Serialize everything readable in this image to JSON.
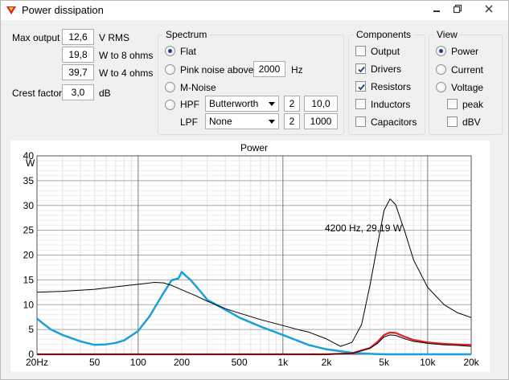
{
  "window": {
    "title": "Power dissipation",
    "controls": [
      "minimize",
      "restore",
      "close"
    ]
  },
  "levels": {
    "max_output_label": "Max output",
    "max_output_value": "12,6",
    "max_output_unit": "V  RMS",
    "w8_value": "19,8",
    "w8_unit": "W to 8 ohms",
    "w4_value": "39,7",
    "w4_unit": "W to 4 ohms",
    "crest_label": "Crest factor",
    "crest_value": "3,0",
    "crest_unit": "dB"
  },
  "spectrum": {
    "title": "Spectrum",
    "flat_label": "Flat",
    "flat_selected": true,
    "pink_label": "Pink noise above",
    "pink_value": "2000",
    "pink_unit": "Hz",
    "mnoise_label": "M-Noise",
    "hpf_label": "HPF",
    "hpf_type": "Butterworth",
    "hpf_order": "2",
    "hpf_freq": "10,0",
    "lpf_label": "LPF",
    "lpf_type": "None",
    "lpf_order": "2",
    "lpf_freq": "1000"
  },
  "components": {
    "title": "Components",
    "items": [
      {
        "label": "Output",
        "checked": false
      },
      {
        "label": "Drivers",
        "checked": true
      },
      {
        "label": "Resistors",
        "checked": true
      },
      {
        "label": "Inductors",
        "checked": false
      },
      {
        "label": "Capacitors",
        "checked": false
      }
    ]
  },
  "view": {
    "title": "View",
    "power_label": "Power",
    "current_label": "Current",
    "voltage_label": "Voltage",
    "selected": "Power",
    "peak_label": "peak",
    "dbv_label": "dBV"
  },
  "chart_data": {
    "type": "line",
    "title": "Power",
    "ylabel": "W",
    "xscale": "log",
    "xlim": [
      20,
      20000
    ],
    "ylim": [
      0,
      40
    ],
    "xticks": [
      20,
      50,
      100,
      200,
      500,
      1000,
      2000,
      5000,
      10000,
      20000
    ],
    "xtick_labels": [
      "20Hz",
      "50",
      "100",
      "200",
      "500",
      "1k",
      "2k",
      "5k",
      "10k",
      "20k"
    ],
    "yticks": [
      0,
      5,
      10,
      15,
      20,
      25,
      30,
      35,
      40
    ],
    "ytick_labels": [
      "0",
      "5",
      "10",
      "15",
      "20",
      "25",
      "30",
      "35",
      "40"
    ],
    "grid": true,
    "annotation": "4200 Hz, 29,19 W",
    "series": [
      {
        "color": "#000000",
        "x": [
          20,
          30,
          50,
          70,
          100,
          130,
          150,
          170,
          200,
          250,
          300,
          400,
          500,
          700,
          1000,
          1300,
          1500,
          2000,
          2500,
          3000,
          3500,
          4000,
          4500,
          5000,
          5500,
          6000,
          7000,
          8000,
          10000,
          13000,
          16000,
          20000
        ],
        "y": [
          12.5,
          12.7,
          13.1,
          13.6,
          14.1,
          14.5,
          14.4,
          13.9,
          13.0,
          11.8,
          10.7,
          9.2,
          8.3,
          7.0,
          5.8,
          4.9,
          4.5,
          3.1,
          1.6,
          2.4,
          6.0,
          14.0,
          22.0,
          29.0,
          31.3,
          30.2,
          24.5,
          19.0,
          13.5,
          10.0,
          8.4,
          7.4
        ]
      },
      {
        "color": "#1a9fd8",
        "x": [
          20,
          22,
          25,
          30,
          40,
          50,
          60,
          70,
          80,
          100,
          120,
          150,
          170,
          190,
          200,
          210,
          230,
          250,
          280,
          300,
          400,
          500,
          700,
          1000,
          1500,
          2000,
          3000,
          4000,
          5000,
          20000
        ],
        "y": [
          7.2,
          6.2,
          5.0,
          3.9,
          2.6,
          1.9,
          2.0,
          2.3,
          2.8,
          4.7,
          7.7,
          12.4,
          14.9,
          15.3,
          16.6,
          16.0,
          15.0,
          13.8,
          12.1,
          11.0,
          9.0,
          7.4,
          5.6,
          3.9,
          1.9,
          1.0,
          0.3,
          0.1,
          0,
          0
        ]
      },
      {
        "color": "#e51e1e",
        "x": [
          20,
          2000,
          3000,
          4000,
          4500,
          5000,
          5500,
          6000,
          7000,
          8000,
          10000,
          13000,
          16000,
          20000
        ],
        "y": [
          0,
          0,
          0.2,
          1.3,
          2.5,
          3.9,
          4.4,
          4.3,
          3.5,
          2.9,
          2.4,
          2.1,
          2.0,
          1.9
        ]
      },
      {
        "color": "#000000",
        "x": [
          20,
          2000,
          3000,
          4000,
          4500,
          5000,
          5500,
          6000,
          7000,
          8000,
          10000,
          13000,
          16000,
          20000
        ],
        "y": [
          0,
          0,
          0.2,
          1.2,
          2.2,
          3.5,
          3.9,
          3.8,
          3.1,
          2.6,
          2.2,
          1.9,
          1.8,
          1.6
        ]
      }
    ]
  }
}
